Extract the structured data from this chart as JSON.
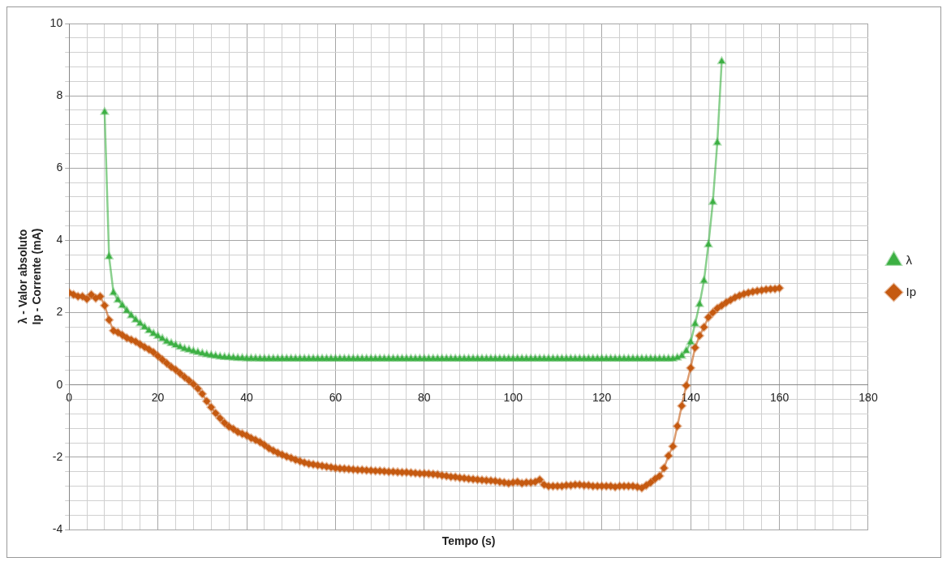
{
  "chart_data": {
    "type": "line",
    "xlabel": "Tempo (s)",
    "ylabel": "λ - Valor absoluto\nIp - Corrente (mA)",
    "legend": "right",
    "grid": true,
    "line_style": "solid",
    "xlim": [
      0,
      180
    ],
    "xticks": [
      0,
      {
        "value": 4,
        "label": null
      },
      {
        "value": 8,
        "label": null
      },
      {
        "value": 12,
        "label": null
      },
      {
        "value": 16,
        "label": null
      },
      20,
      {
        "value": 24,
        "label": null
      },
      {
        "value": 28,
        "label": null
      },
      {
        "value": 32,
        "label": null
      },
      {
        "value": 36,
        "label": null
      },
      40,
      {
        "value": 44,
        "label": null
      },
      {
        "value": 48,
        "label": null
      },
      {
        "value": 52,
        "label": null
      },
      {
        "value": 56,
        "label": null
      },
      60,
      {
        "value": 64,
        "label": null
      },
      {
        "value": 68,
        "label": null
      },
      {
        "value": 72,
        "label": null
      },
      {
        "value": 76,
        "label": null
      },
      80,
      {
        "value": 84,
        "label": null
      },
      {
        "value": 88,
        "label": null
      },
      {
        "value": 92,
        "label": null
      },
      {
        "value": 96,
        "label": null
      },
      100,
      {
        "value": 104,
        "label": null
      },
      {
        "value": 108,
        "label": null
      },
      {
        "value": 112,
        "label": null
      },
      {
        "value": 116,
        "label": null
      },
      120,
      {
        "value": 124,
        "label": null
      },
      {
        "value": 128,
        "label": null
      },
      {
        "value": 132,
        "label": null
      },
      {
        "value": 136,
        "label": null
      },
      140,
      {
        "value": 144,
        "label": null
      },
      {
        "value": 148,
        "label": null
      },
      {
        "value": 152,
        "label": null
      },
      {
        "value": 156,
        "label": null
      },
      160,
      {
        "value": 164,
        "label": null
      },
      {
        "value": 168,
        "label": null
      },
      {
        "value": 172,
        "label": null
      },
      {
        "value": 176,
        "label": null
      },
      180
    ],
    "ylim": [
      -4,
      10
    ],
    "yticks": [
      -4,
      {
        "value": -3.6,
        "label": null
      },
      {
        "value": -3.2,
        "label": null
      },
      {
        "value": -2.8,
        "label": null
      },
      {
        "value": -2.4,
        "label": null
      },
      -2,
      {
        "value": -1.6,
        "label": null
      },
      {
        "value": -1.2,
        "label": null
      },
      {
        "value": -0.8,
        "label": null
      },
      {
        "value": -0.4,
        "label": null
      },
      0,
      {
        "value": 0.4,
        "label": null
      },
      {
        "value": 0.8,
        "label": null
      },
      {
        "value": 1.2,
        "label": null
      },
      {
        "value": 1.6,
        "label": null
      },
      2,
      {
        "value": 2.4,
        "label": null
      },
      {
        "value": 2.8,
        "label": null
      },
      {
        "value": 3.2,
        "label": null
      },
      {
        "value": 3.6,
        "label": null
      },
      4,
      {
        "value": 4.4,
        "label": null
      },
      {
        "value": 4.8,
        "label": null
      },
      {
        "value": 5.2,
        "label": null
      },
      {
        "value": 5.6,
        "label": null
      },
      6,
      {
        "value": 6.4,
        "label": null
      },
      {
        "value": 6.8,
        "label": null
      },
      {
        "value": 7.2,
        "label": null
      },
      {
        "value": 7.6,
        "label": null
      },
      8,
      {
        "value": 8.4,
        "label": null
      },
      {
        "value": 8.8,
        "label": null
      },
      {
        "value": 9.2,
        "label": null
      },
      {
        "value": 9.6,
        "label": null
      },
      10
    ],
    "series": [
      {
        "name": "λ",
        "color": "#3cb043",
        "marker": "triangle",
        "x": [
          8,
          9,
          10,
          11,
          12,
          13,
          14,
          15,
          16,
          17,
          18,
          19,
          20,
          21,
          22,
          23,
          24,
          25,
          26,
          27,
          28,
          29,
          30,
          31,
          32,
          33,
          34,
          35,
          36,
          37,
          38,
          39,
          40,
          41,
          42,
          43,
          44,
          45,
          46,
          47,
          48,
          49,
          50,
          51,
          52,
          53,
          54,
          55,
          56,
          57,
          58,
          59,
          60,
          61,
          62,
          63,
          64,
          65,
          66,
          67,
          68,
          69,
          70,
          71,
          72,
          73,
          74,
          75,
          76,
          77,
          78,
          79,
          80,
          81,
          82,
          83,
          84,
          85,
          86,
          87,
          88,
          89,
          90,
          91,
          92,
          93,
          94,
          95,
          96,
          97,
          98,
          99,
          100,
          101,
          102,
          103,
          104,
          105,
          106,
          107,
          108,
          109,
          110,
          111,
          112,
          113,
          114,
          115,
          116,
          117,
          118,
          119,
          120,
          121,
          122,
          123,
          124,
          125,
          126,
          127,
          128,
          129,
          130,
          131,
          132,
          133,
          134,
          135,
          136,
          137,
          138,
          139,
          140,
          141,
          142,
          143,
          144,
          145,
          146,
          147
        ],
        "values": [
          7.55,
          3.55,
          2.55,
          2.35,
          2.2,
          2.05,
          1.92,
          1.8,
          1.7,
          1.6,
          1.5,
          1.42,
          1.35,
          1.28,
          1.2,
          1.15,
          1.1,
          1.05,
          1.0,
          0.97,
          0.93,
          0.9,
          0.87,
          0.84,
          0.82,
          0.8,
          0.78,
          0.77,
          0.76,
          0.75,
          0.74,
          0.74,
          0.73,
          0.73,
          0.73,
          0.72,
          0.72,
          0.72,
          0.72,
          0.72,
          0.72,
          0.72,
          0.72,
          0.72,
          0.72,
          0.72,
          0.72,
          0.72,
          0.72,
          0.72,
          0.72,
          0.72,
          0.72,
          0.72,
          0.72,
          0.72,
          0.72,
          0.72,
          0.72,
          0.72,
          0.72,
          0.72,
          0.72,
          0.72,
          0.72,
          0.72,
          0.72,
          0.72,
          0.72,
          0.72,
          0.72,
          0.72,
          0.72,
          0.72,
          0.72,
          0.72,
          0.72,
          0.72,
          0.72,
          0.72,
          0.72,
          0.72,
          0.72,
          0.72,
          0.72,
          0.72,
          0.72,
          0.72,
          0.72,
          0.72,
          0.72,
          0.72,
          0.72,
          0.72,
          0.72,
          0.72,
          0.72,
          0.72,
          0.72,
          0.72,
          0.72,
          0.72,
          0.72,
          0.72,
          0.72,
          0.72,
          0.72,
          0.72,
          0.72,
          0.72,
          0.72,
          0.72,
          0.72,
          0.72,
          0.72,
          0.72,
          0.72,
          0.72,
          0.72,
          0.72,
          0.72,
          0.72,
          0.72,
          0.72,
          0.72,
          0.72,
          0.72,
          0.72,
          0.72,
          0.75,
          0.8,
          0.94,
          1.18,
          1.69,
          2.23,
          2.88,
          3.88,
          5.06,
          6.7,
          8.95
        ]
      },
      {
        "name": "Ip",
        "color": "#c55a11",
        "marker": "diamond",
        "x": [
          0,
          1,
          2,
          3,
          4,
          5,
          6,
          7,
          8,
          9,
          10,
          11,
          12,
          13,
          14,
          15,
          16,
          17,
          18,
          19,
          20,
          21,
          22,
          23,
          24,
          25,
          26,
          27,
          28,
          29,
          30,
          31,
          32,
          33,
          34,
          35,
          36,
          37,
          38,
          39,
          40,
          41,
          42,
          43,
          44,
          45,
          46,
          47,
          48,
          49,
          50,
          51,
          52,
          53,
          54,
          55,
          56,
          57,
          58,
          59,
          60,
          61,
          62,
          63,
          64,
          65,
          66,
          67,
          68,
          69,
          70,
          71,
          72,
          73,
          74,
          75,
          76,
          77,
          78,
          79,
          80,
          81,
          82,
          83,
          84,
          85,
          86,
          87,
          88,
          89,
          90,
          91,
          92,
          93,
          94,
          95,
          96,
          97,
          98,
          99,
          100,
          101,
          102,
          103,
          104,
          105,
          106,
          107,
          108,
          109,
          110,
          111,
          112,
          113,
          114,
          115,
          116,
          117,
          118,
          119,
          120,
          121,
          122,
          123,
          124,
          125,
          126,
          127,
          128,
          129,
          130,
          131,
          132,
          133,
          134,
          135,
          136,
          137,
          138,
          139,
          140,
          141,
          142,
          143,
          144,
          145,
          146,
          147,
          148,
          149,
          150,
          151,
          152,
          153,
          154,
          155,
          156,
          157,
          158,
          159,
          160
        ],
        "values": [
          2.55,
          2.5,
          2.45,
          2.45,
          2.38,
          2.5,
          2.4,
          2.45,
          2.2,
          1.8,
          1.5,
          1.45,
          1.38,
          1.3,
          1.25,
          1.2,
          1.12,
          1.05,
          0.98,
          0.9,
          0.8,
          0.7,
          0.6,
          0.5,
          0.42,
          0.32,
          0.22,
          0.12,
          0.02,
          -0.1,
          -0.25,
          -0.45,
          -0.62,
          -0.78,
          -0.92,
          -1.05,
          -1.15,
          -1.22,
          -1.3,
          -1.35,
          -1.4,
          -1.47,
          -1.52,
          -1.58,
          -1.66,
          -1.75,
          -1.82,
          -1.88,
          -1.93,
          -1.98,
          -2.02,
          -2.07,
          -2.11,
          -2.15,
          -2.18,
          -2.2,
          -2.22,
          -2.24,
          -2.26,
          -2.28,
          -2.3,
          -2.31,
          -2.32,
          -2.33,
          -2.34,
          -2.35,
          -2.35,
          -2.36,
          -2.37,
          -2.38,
          -2.38,
          -2.39,
          -2.4,
          -2.4,
          -2.41,
          -2.42,
          -2.42,
          -2.43,
          -2.44,
          -2.45,
          -2.45,
          -2.46,
          -2.47,
          -2.48,
          -2.5,
          -2.52,
          -2.54,
          -2.55,
          -2.57,
          -2.58,
          -2.6,
          -2.61,
          -2.62,
          -2.63,
          -2.64,
          -2.65,
          -2.66,
          -2.68,
          -2.7,
          -2.72,
          -2.7,
          -2.68,
          -2.72,
          -2.7,
          -2.7,
          -2.68,
          -2.62,
          -2.76,
          -2.8,
          -2.8,
          -2.8,
          -2.8,
          -2.78,
          -2.78,
          -2.76,
          -2.76,
          -2.78,
          -2.78,
          -2.8,
          -2.8,
          -2.8,
          -2.8,
          -2.8,
          -2.82,
          -2.8,
          -2.8,
          -2.8,
          -2.8,
          -2.82,
          -2.85,
          -2.78,
          -2.7,
          -2.6,
          -2.52,
          -2.3,
          -1.96,
          -1.7,
          -1.14,
          -0.58,
          -0.02,
          0.47,
          1.03,
          1.36,
          1.6,
          1.87,
          2.0,
          2.12,
          2.2,
          2.28,
          2.35,
          2.42,
          2.47,
          2.52,
          2.55,
          2.58,
          2.6,
          2.62,
          2.64,
          2.65,
          2.66,
          2.68
        ]
      }
    ]
  }
}
